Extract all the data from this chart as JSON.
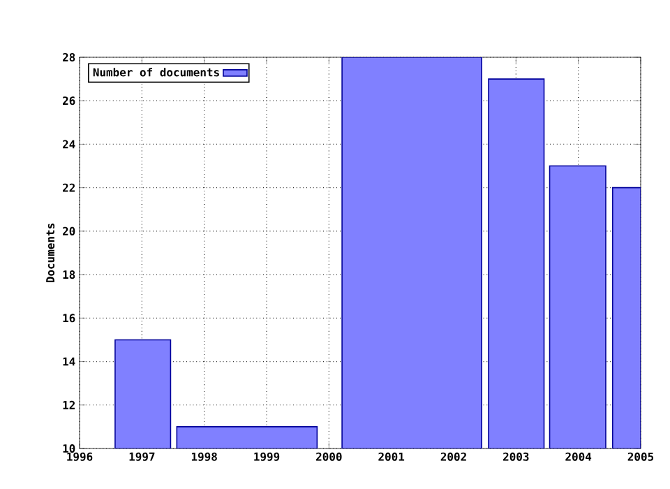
{
  "chart_data": {
    "type": "histogram",
    "ylabel": "Documents",
    "bins": [
      1996.57,
      1997.46,
      1997.56,
      1999.81,
      2000.21,
      2002.45,
      2002.56,
      2003.45,
      2003.54,
      2004.44,
      2004.55,
      2005
    ],
    "series": [
      {
        "name": "Number of documents",
        "color": "#8080ff",
        "values": [
          15,
          null,
          11,
          null,
          28,
          null,
          27,
          null,
          23,
          null,
          22
        ]
      }
    ],
    "xlim": [
      1996,
      2005
    ],
    "ylim": [
      10,
      28
    ],
    "xticks": [
      1996,
      1997,
      1998,
      1999,
      2000,
      2001,
      2002,
      2003,
      2004,
      2005
    ],
    "yticks": [
      10,
      12,
      14,
      16,
      18,
      20,
      22,
      24,
      26,
      28
    ],
    "grid": true,
    "legend": "top left"
  }
}
